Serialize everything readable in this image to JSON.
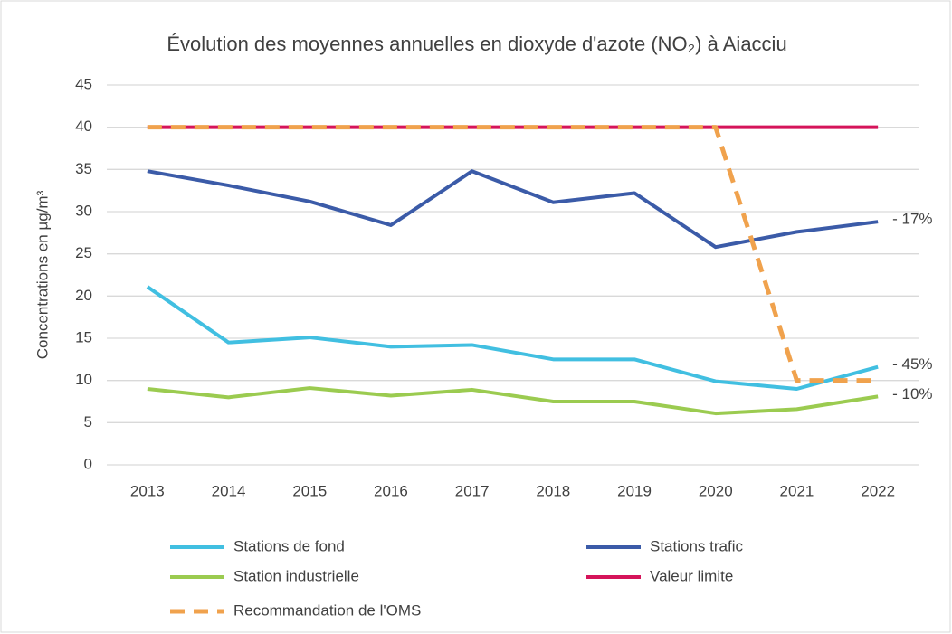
{
  "chart_data": {
    "type": "line",
    "title": "Évolution des moyennes annuelles en dioxyde d'azote (NO₂) à Aiacciu",
    "y_label": "Concentrations en µg/m³",
    "categories": [
      "2013",
      "2014",
      "2015",
      "2016",
      "2017",
      "2018",
      "2019",
      "2020",
      "2021",
      "2022"
    ],
    "series": [
      {
        "name": "Stations de fond",
        "color": "#41bfe1",
        "values": [
          21.1,
          14.5,
          15.1,
          14.0,
          14.2,
          12.5,
          12.5,
          9.9,
          9.0,
          11.6
        ]
      },
      {
        "name": "Stations trafic",
        "color": "#3b5ba8",
        "values": [
          34.8,
          33.1,
          31.2,
          28.4,
          34.8,
          31.1,
          32.2,
          25.8,
          27.6,
          28.8
        ]
      },
      {
        "name": "Station industrielle",
        "color": "#9bcb50",
        "values": [
          9.0,
          8.0,
          9.1,
          8.2,
          8.9,
          7.5,
          7.5,
          6.1,
          6.6,
          8.1
        ]
      },
      {
        "name": "Valeur limite",
        "color": "#d5145a",
        "values": [
          40,
          40,
          40,
          40,
          40,
          40,
          40,
          40,
          40,
          40
        ]
      },
      {
        "name": "Recommandation de l'OMS",
        "color": "#f0a24d",
        "dashed": true,
        "values": [
          40,
          40,
          40,
          40,
          40,
          40,
          40,
          40,
          10,
          10
        ]
      }
    ],
    "annotations": [
      "- 17%",
      "- 45%",
      "- 10%"
    ],
    "ylim": [
      0,
      45
    ],
    "yticks": [
      0,
      5,
      10,
      15,
      20,
      25,
      30,
      35,
      40,
      45
    ],
    "grid": true
  }
}
